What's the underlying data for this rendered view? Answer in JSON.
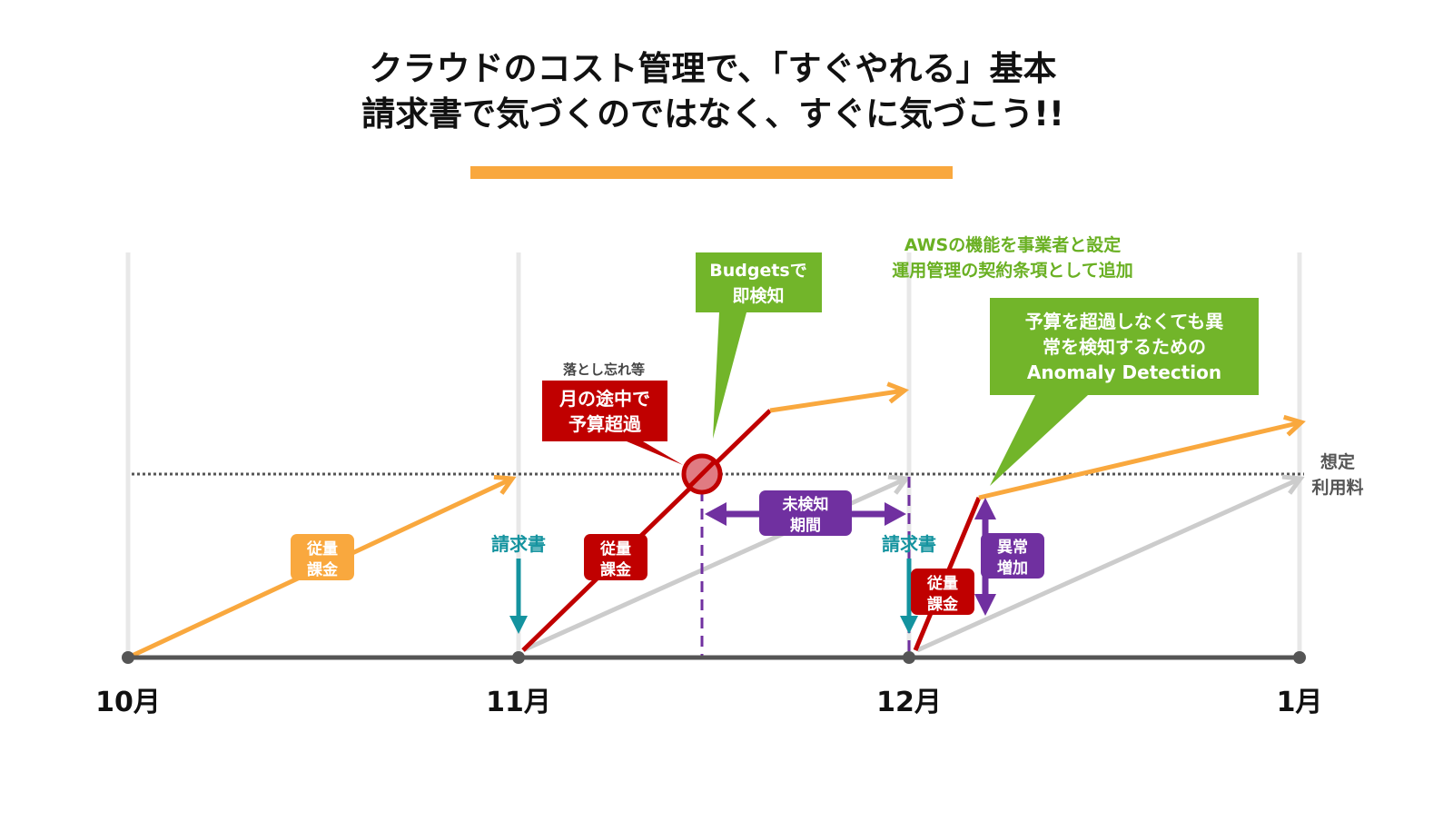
{
  "title": {
    "line1": "クラウドのコスト管理で、「すぐやれる」基本",
    "line2": "請求書で気づくのではなく、すぐに気づこう!!"
  },
  "colors": {
    "orange": "#f9a83e",
    "red": "#c00000",
    "green": "#72b52a",
    "purple": "#7030a0",
    "teal": "#14939f",
    "gray_line": "#cccccc",
    "axis": "#555555"
  },
  "axis": {
    "months": [
      "10月",
      "11月",
      "12月",
      "1月"
    ]
  },
  "threshold": {
    "label_line1": "想定",
    "label_line2": "利用料"
  },
  "labels": {
    "usage_billing_1": [
      "従量",
      "課金"
    ],
    "usage_billing_2": [
      "従量",
      "課金"
    ],
    "usage_billing_3": [
      "従量",
      "課金"
    ],
    "invoice_1": "請求書",
    "invoice_2": "請求書",
    "undetected_period": [
      "未検知",
      "期間"
    ],
    "anomaly_increase": [
      "異常",
      "増加"
    ],
    "forgotten_note": "落とし忘れ等",
    "over_budget": [
      "月の途中で",
      "予算超過"
    ],
    "budgets_callout": [
      "Budgetsで",
      "即検知"
    ],
    "aws_note": [
      "AWSの機能を事業者と設定",
      "運用管理の契約条項として追加"
    ],
    "anomaly_callout": [
      "予算を超過しなくても異",
      "常を検知するための",
      "Anomaly Detection"
    ]
  }
}
